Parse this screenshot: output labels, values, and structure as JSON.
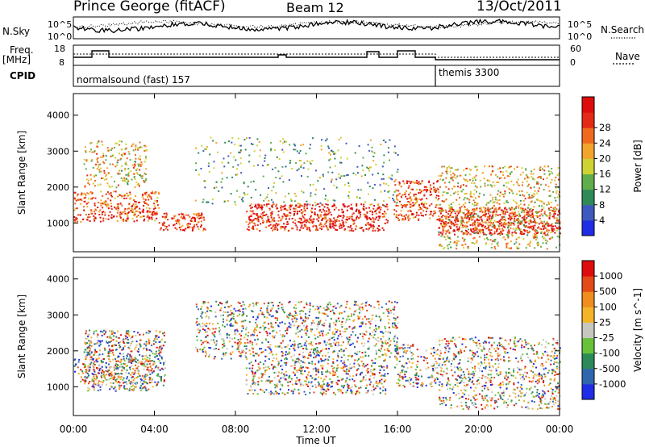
{
  "header": {
    "station": "Prince George (fitACF)",
    "beam": "Beam 12",
    "date": "13/Oct/2011"
  },
  "top_panels": {
    "nsky_label": "N.Sky",
    "nsearch_label": "N.Search",
    "freq_label_1": "Freq.",
    "freq_label_2": "[MHz]",
    "nave_label": "Nave",
    "cpid_label": "CPID",
    "left_tick_top": "10^5",
    "left_tick_bottom": "10^0",
    "right_tick_top": "10^5",
    "right_tick_bottom": "10^0",
    "freq_tick_top": "18",
    "freq_tick_bottom": "8",
    "nave_tick_top": "60",
    "nave_tick_bottom": "0",
    "cpid_segments": [
      {
        "label": "normalsound (fast) 157",
        "start_hour": 0,
        "end_hour": 18.0
      },
      {
        "label": "themis 3300",
        "start_hour": 18.0,
        "end_hour": 24
      }
    ]
  },
  "chart_data": [
    {
      "type": "heatmap",
      "name": "power",
      "ylabel": "Slant Range [km]",
      "xlabel": "Time UT",
      "xlim": [
        0,
        24
      ],
      "ylim": [
        200,
        4600
      ],
      "x_ticks": [
        "00:00",
        "04:00",
        "08:00",
        "12:00",
        "16:00",
        "20:00",
        "00:00"
      ],
      "y_ticks": [
        "1000",
        "2000",
        "3000",
        "4000"
      ],
      "colorbar": {
        "label": "Power [dB]",
        "ticks": [
          "4",
          "8",
          "12",
          "16",
          "20",
          "24",
          "28"
        ],
        "colors": [
          "#1f2de6",
          "#3e59bd",
          "#2f8a58",
          "#5fad4c",
          "#cfd233",
          "#f3a42a",
          "#ef6a1e",
          "#e52a17",
          "#dd0d0d"
        ]
      },
      "scatter_bands": [
        {
          "start_hour": 0.0,
          "end_hour": 4.2,
          "range_low": 1050,
          "range_high": 1900,
          "level": 0.75
        },
        {
          "start_hour": 0.5,
          "end_hour": 3.6,
          "range_low": 2000,
          "range_high": 3300,
          "level": 0.45
        },
        {
          "start_hour": 4.2,
          "end_hour": 6.5,
          "range_low": 800,
          "range_high": 1300,
          "level": 0.85
        },
        {
          "start_hour": 8.5,
          "end_hour": 15.5,
          "range_low": 800,
          "range_high": 1550,
          "level": 0.9
        },
        {
          "start_hour": 15.8,
          "end_hour": 18.0,
          "range_low": 1100,
          "range_high": 2200,
          "level": 0.75
        },
        {
          "start_hour": 18.0,
          "end_hour": 24.0,
          "range_low": 700,
          "range_high": 1450,
          "level": 0.95
        },
        {
          "start_hour": 18.0,
          "end_hour": 24.0,
          "range_low": 300,
          "range_high": 2600,
          "level": 0.45
        },
        {
          "start_hour": 6.0,
          "end_hour": 16.0,
          "range_low": 1500,
          "range_high": 3400,
          "level": 0.15
        }
      ]
    },
    {
      "type": "heatmap",
      "name": "velocity",
      "ylabel": "Slant Range [km]",
      "xlabel": "Time UT",
      "xlim": [
        0,
        24
      ],
      "ylim": [
        200,
        4600
      ],
      "x_ticks": [
        "00:00",
        "04:00",
        "08:00",
        "12:00",
        "16:00",
        "20:00",
        "00:00"
      ],
      "y_ticks": [
        "1000",
        "2000",
        "3000",
        "4000"
      ],
      "colorbar": {
        "label": "Velocity [m s^-1]",
        "ticks": [
          "1000",
          "500",
          "100",
          "25",
          "-25",
          "-100",
          "-500",
          "-1000"
        ],
        "colors": [
          "#1f2de6",
          "#2f66b0",
          "#2b8a57",
          "#67c23a",
          "#c7c7c0",
          "#f4b428",
          "#ef8d1e",
          "#e34a17",
          "#dd0d0d"
        ]
      },
      "scatter_bands": [
        {
          "start_hour": 0.0,
          "end_hour": 3.6,
          "range_low": 1100,
          "range_high": 1800,
          "level": 0.5
        },
        {
          "start_hour": 0.5,
          "end_hour": 4.5,
          "range_low": 900,
          "range_high": 2600,
          "level": 0.7
        },
        {
          "start_hour": 8.5,
          "end_hour": 15.5,
          "range_low": 800,
          "range_high": 1800,
          "level": 0.6
        },
        {
          "start_hour": 15.8,
          "end_hour": 18.0,
          "range_low": 1000,
          "range_high": 2200,
          "level": 0.5
        },
        {
          "start_hour": 18.0,
          "end_hour": 24.0,
          "range_low": 400,
          "range_high": 2400,
          "level": 0.5
        },
        {
          "start_hour": 6.0,
          "end_hour": 16.0,
          "range_low": 1800,
          "range_high": 3400,
          "level": 0.5
        }
      ]
    }
  ]
}
